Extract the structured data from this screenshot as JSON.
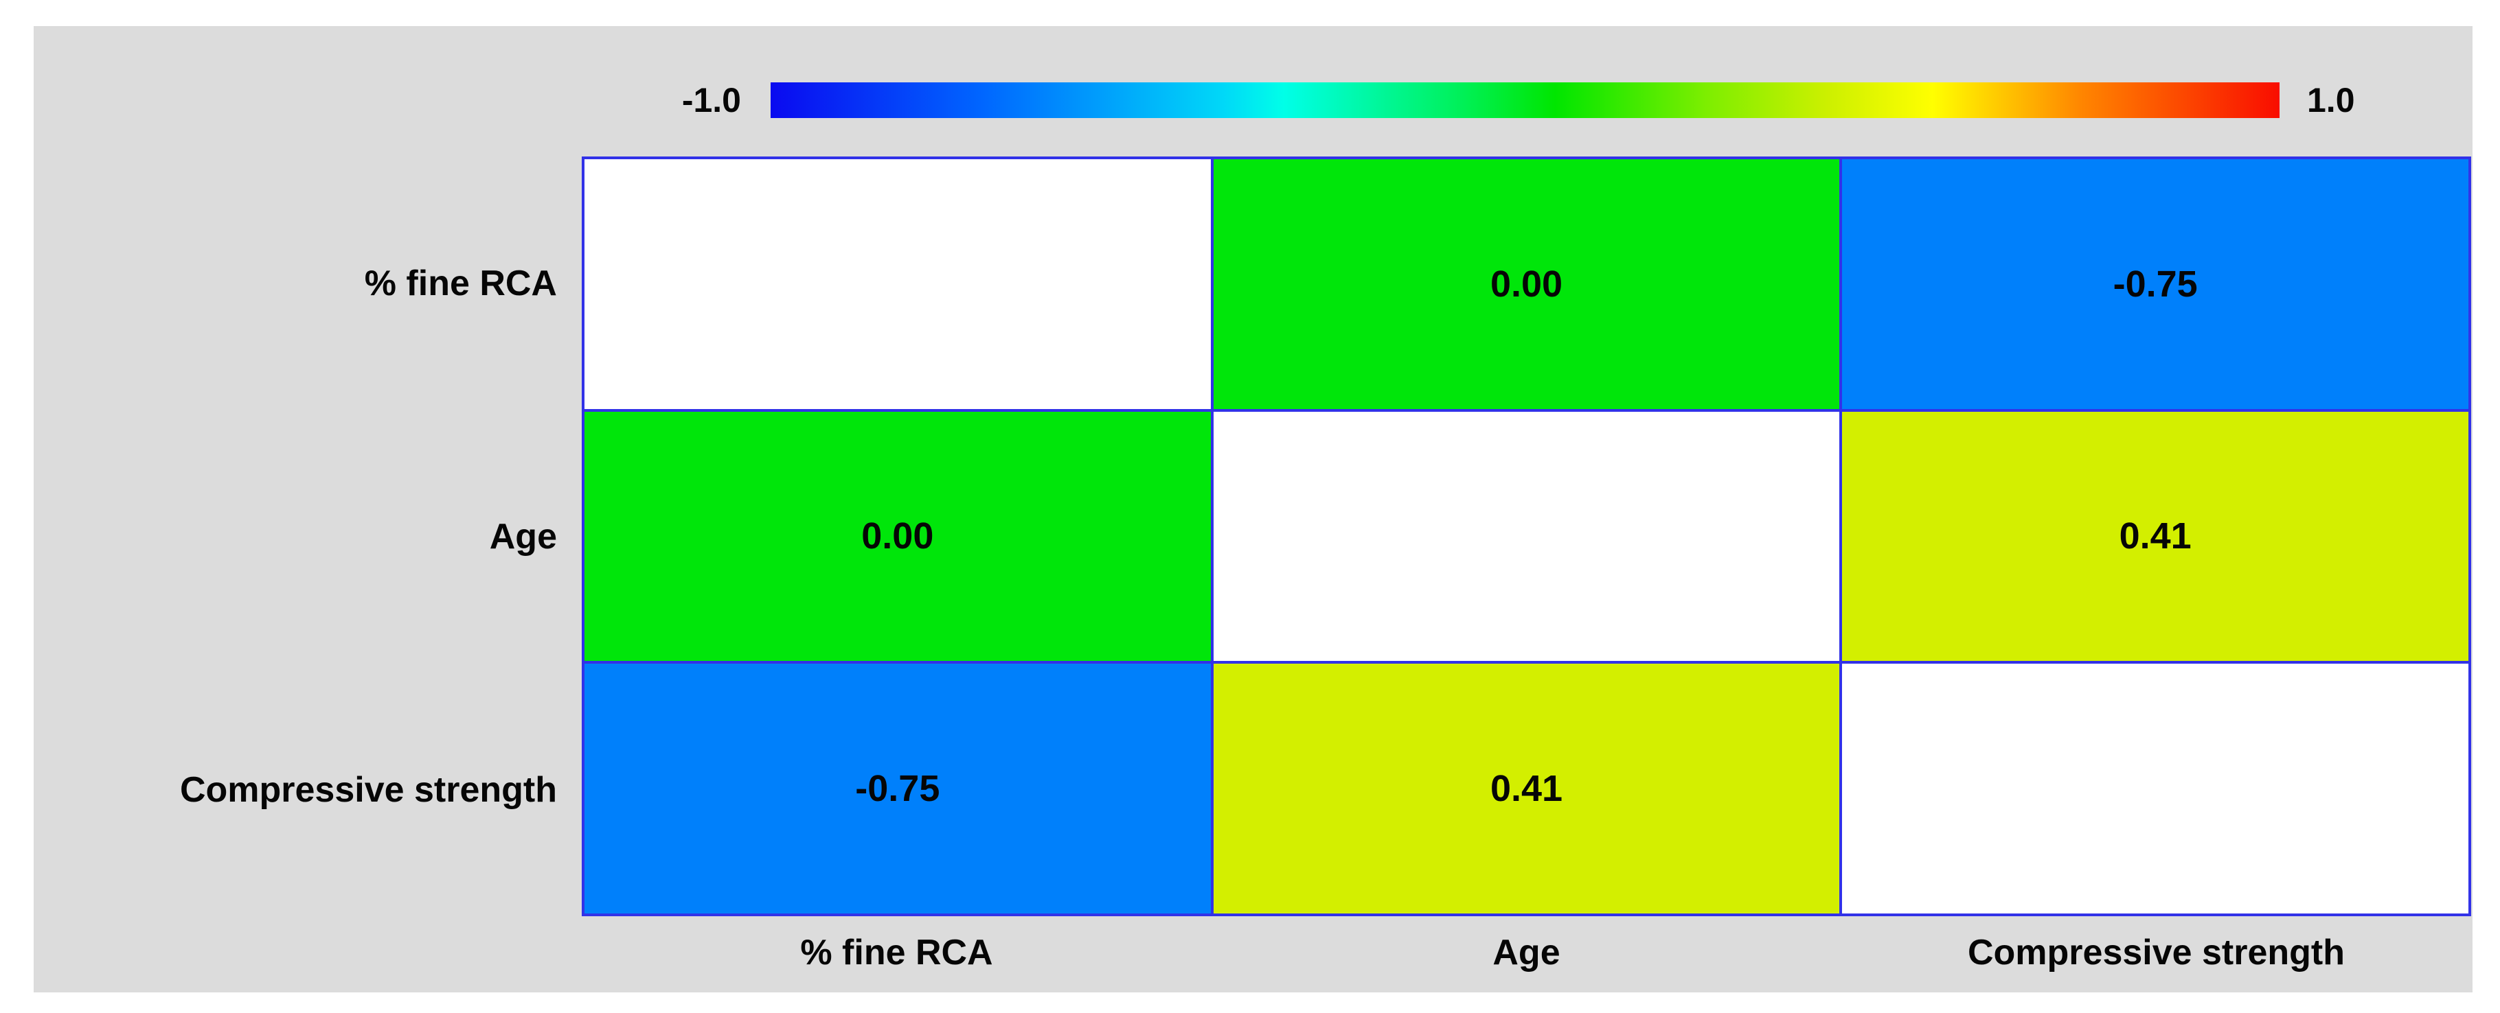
{
  "chart_data": {
    "type": "heatmap",
    "title": "",
    "variables": [
      "% fine RCA",
      "Age",
      "Compressive strength"
    ],
    "row_labels": [
      "% fine RCA",
      "Age",
      "Compressive strength"
    ],
    "col_labels": [
      "% fine RCA",
      "Age",
      "Compressive strength"
    ],
    "matrix": [
      [
        null,
        0.0,
        -0.75
      ],
      [
        0.0,
        null,
        0.41
      ],
      [
        -0.75,
        0.41,
        null
      ]
    ],
    "cell_labels": [
      [
        "",
        "0.00",
        "-0.75"
      ],
      [
        "0.00",
        "",
        "0.41"
      ],
      [
        "-0.75",
        "0.41",
        ""
      ]
    ],
    "cell_colors": [
      [
        "#FFFFFF",
        "#00E60A",
        "#0080FB"
      ],
      [
        "#00E60A",
        "#FFFFFF",
        "#D3EF00"
      ],
      [
        "#0080FB",
        "#D3EF00",
        "#FFFFFF"
      ]
    ],
    "colorbar": {
      "min_label": "-1.0",
      "max_label": "1.0",
      "range": [
        -1.0,
        1.0
      ],
      "orientation": "horizontal",
      "gradient": [
        {
          "pos": 0.0,
          "color": "#0A0AF0"
        },
        {
          "pos": 0.14,
          "color": "#0066FF"
        },
        {
          "pos": 0.3,
          "color": "#00D8F8"
        },
        {
          "pos": 0.34,
          "color": "#00FFE8"
        },
        {
          "pos": 0.46,
          "color": "#00F055"
        },
        {
          "pos": 0.52,
          "color": "#00E600"
        },
        {
          "pos": 0.62,
          "color": "#7DEE00"
        },
        {
          "pos": 0.7,
          "color": "#CCF000"
        },
        {
          "pos": 0.77,
          "color": "#FFFF00"
        },
        {
          "pos": 0.87,
          "color": "#FF8400"
        },
        {
          "pos": 1.0,
          "color": "#F90D00"
        }
      ]
    },
    "colors": {
      "panel_bg": "#DCDCDC",
      "grid_border": "#3232E8",
      "text": "#060606",
      "diagonal_cell": "#FFFFFF"
    },
    "legend_position": "top",
    "grid": false
  }
}
